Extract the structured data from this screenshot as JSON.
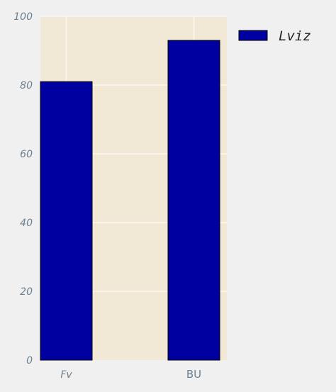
{
  "chart_data": {
    "type": "bar",
    "categories": [
      "Fv",
      "BU"
    ],
    "series": [
      {
        "name": "Lviz",
        "values": [
          81,
          93
        ]
      }
    ],
    "ylim": [
      0,
      100
    ],
    "yticks": [
      0,
      20,
      40,
      60,
      80,
      100
    ],
    "grid": true,
    "legend_position": "outside-top-right",
    "colors": {
      "plot_background": "#f1e8d6",
      "figure_background": "#f0f0f0",
      "bar_fill": "#0000a0",
      "bar_edge": "#000000",
      "grid": "#fbf8f0",
      "tick_text": "#6d8190"
    }
  }
}
